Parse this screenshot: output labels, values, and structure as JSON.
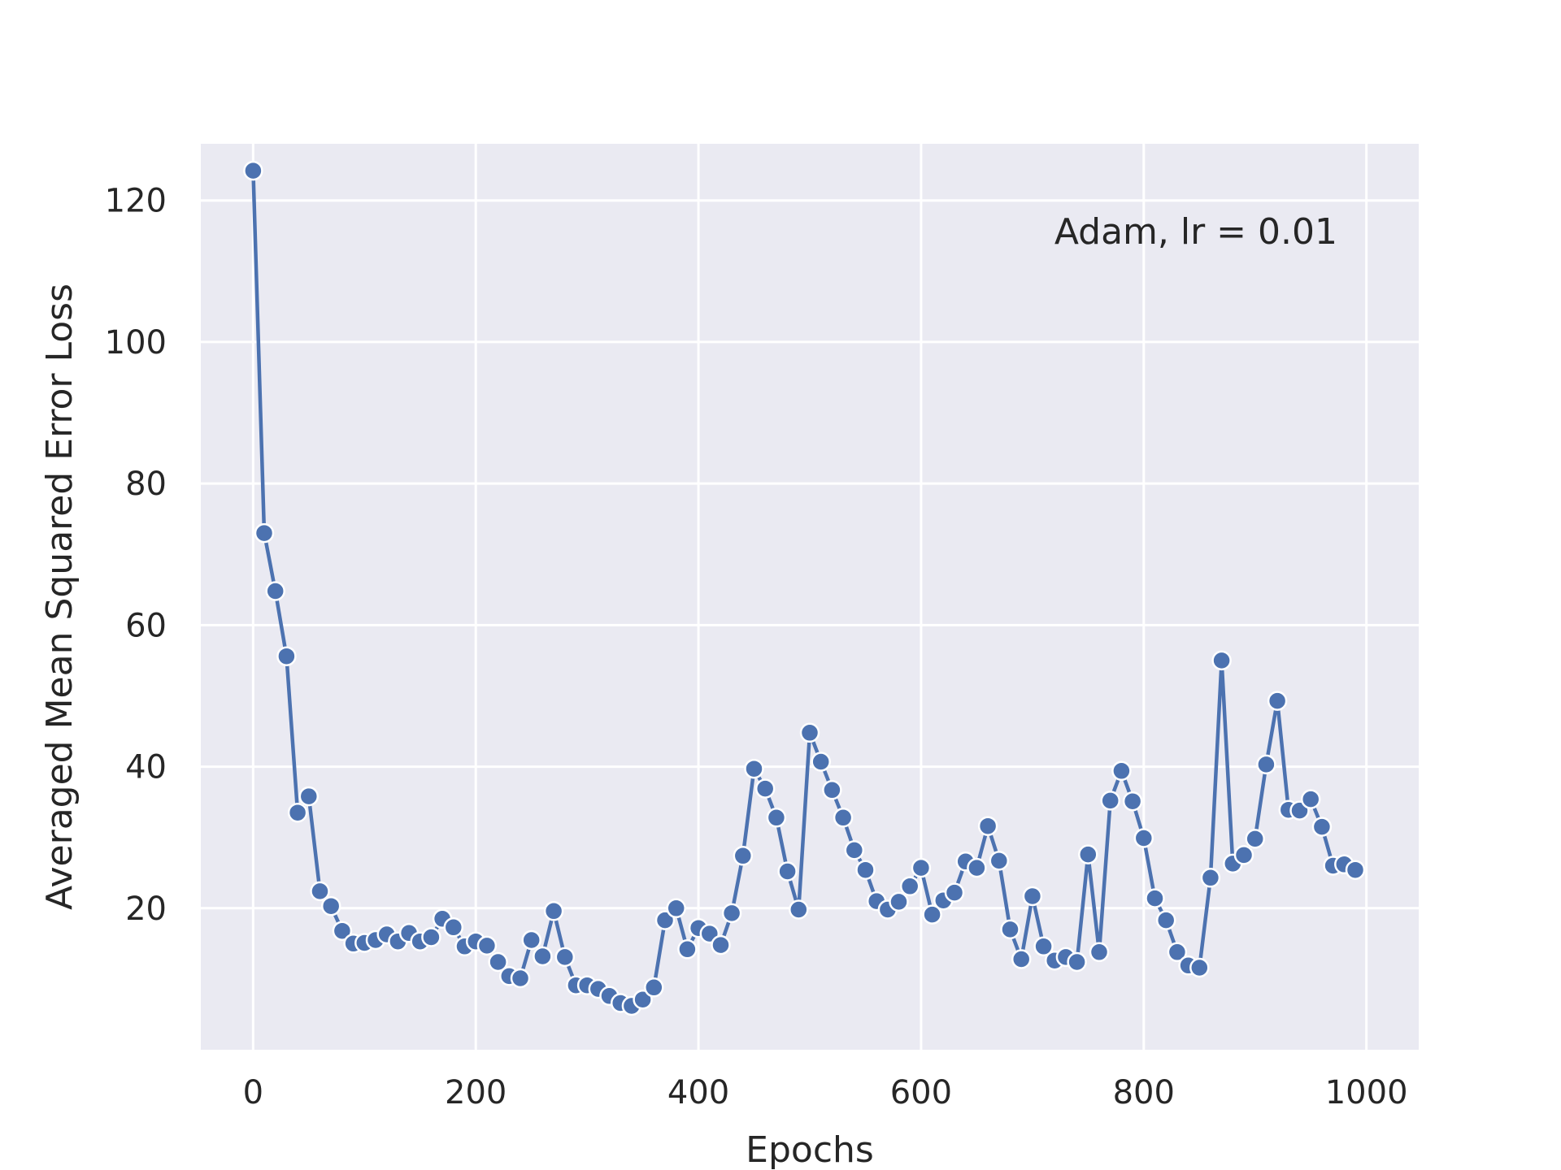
{
  "chart_data": {
    "type": "line",
    "title": "",
    "xlabel": "Epochs",
    "ylabel": "Averaged Mean Squared Error Loss",
    "annotation": "Adam, lr = 0.01",
    "annotation_position": "top-right",
    "grid": true,
    "xlim": [
      -47,
      1047
    ],
    "ylim": [
      0,
      128
    ],
    "x_ticks": [
      0,
      200,
      400,
      600,
      800,
      1000
    ],
    "y_ticks": [
      20,
      40,
      60,
      80,
      100,
      120
    ],
    "x_tick_labels": [
      "0",
      "200",
      "400",
      "600",
      "800",
      "1000"
    ],
    "y_tick_labels": [
      "20",
      "40",
      "60",
      "80",
      "100",
      "120"
    ],
    "colors": {
      "background": "#eaeaf2",
      "grid": "#ffffff",
      "line": "#4c72b0",
      "marker_edge": "#ffffff",
      "text": "#262626"
    },
    "series": [
      {
        "marker": "circle",
        "x": [
          0,
          10,
          20,
          30,
          40,
          50,
          60,
          70,
          80,
          90,
          100,
          110,
          120,
          130,
          140,
          150,
          160,
          170,
          180,
          190,
          200,
          210,
          220,
          230,
          240,
          250,
          260,
          270,
          280,
          290,
          300,
          310,
          320,
          330,
          340,
          350,
          360,
          370,
          380,
          390,
          400,
          410,
          420,
          430,
          440,
          450,
          460,
          470,
          480,
          490,
          500,
          510,
          520,
          530,
          540,
          550,
          560,
          570,
          580,
          590,
          600,
          610,
          620,
          630,
          640,
          650,
          660,
          670,
          680,
          690,
          700,
          710,
          720,
          730,
          740,
          750,
          760,
          770,
          780,
          790,
          800,
          810,
          820,
          830,
          840,
          850,
          860,
          870,
          880,
          890,
          900,
          910,
          920,
          930,
          940,
          950,
          960,
          970,
          980,
          990
        ],
        "values": [
          124.2,
          73.0,
          64.8,
          55.6,
          33.5,
          35.8,
          22.4,
          20.3,
          16.8,
          15.0,
          15.1,
          15.5,
          16.3,
          15.3,
          16.5,
          15.3,
          15.9,
          18.5,
          17.3,
          14.6,
          15.3,
          14.7,
          12.4,
          10.4,
          10.1,
          15.5,
          13.2,
          19.6,
          13.1,
          9.1,
          9.1,
          8.6,
          7.6,
          6.6,
          6.2,
          7.1,
          8.8,
          18.3,
          20.0,
          14.2,
          17.2,
          16.4,
          14.8,
          19.3,
          27.4,
          39.7,
          36.9,
          32.8,
          25.2,
          19.8,
          44.8,
          40.7,
          36.7,
          32.8,
          28.2,
          25.4,
          21.0,
          19.8,
          20.9,
          23.1,
          25.7,
          19.1,
          21.1,
          22.2,
          26.6,
          25.7,
          31.6,
          26.7,
          17.0,
          12.8,
          21.7,
          14.6,
          12.6,
          13.1,
          12.4,
          27.6,
          13.8,
          35.2,
          39.4,
          35.1,
          29.9,
          21.4,
          18.3,
          13.8,
          11.9,
          11.6,
          24.3,
          55.0,
          26.3,
          27.5,
          29.8,
          40.3,
          49.3,
          33.9,
          33.8,
          35.4,
          31.5,
          26.0,
          26.2,
          25.4
        ]
      }
    ]
  }
}
